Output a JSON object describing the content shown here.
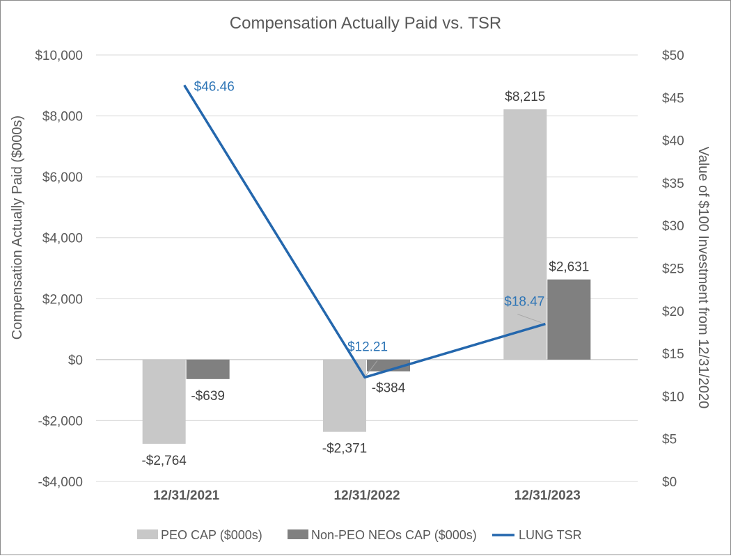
{
  "chart_data": {
    "type": "bar",
    "title": "Compensation Actually Paid vs. TSR",
    "ylabel": "Compensation Actually Paid ($000s)",
    "y2label": "Value of $100 Investment from 12/31/2020",
    "categories": [
      "12/31/2021",
      "12/31/2022",
      "12/31/2023"
    ],
    "ylim": [
      -4000,
      10000
    ],
    "y2lim": [
      0,
      50
    ],
    "y_ticks": [
      -4000,
      -2000,
      0,
      2000,
      4000,
      6000,
      8000,
      10000
    ],
    "y_tick_labels": [
      "-$4,000",
      "-$2,000",
      "$0",
      "$2,000",
      "$4,000",
      "$6,000",
      "$8,000",
      "$10,000"
    ],
    "y2_ticks": [
      0,
      5,
      10,
      15,
      20,
      25,
      30,
      35,
      40,
      45,
      50
    ],
    "y2_tick_labels": [
      "$0",
      "$5",
      "$10",
      "$15",
      "$20",
      "$25",
      "$30",
      "$35",
      "$40",
      "$45",
      "$50"
    ],
    "grid": true,
    "legend_position": "bottom",
    "series": [
      {
        "name": "PEO CAP ($000s)",
        "kind": "bar",
        "axis": "left",
        "color": "#c8c8c8",
        "values": [
          -2764,
          -2371,
          8215
        ],
        "labels": [
          "-$2,764",
          "-$2,371",
          "$8,215"
        ]
      },
      {
        "name": "Non-PEO NEOs CAP ($000s)",
        "kind": "bar",
        "axis": "left",
        "color": "#808080",
        "values": [
          -639,
          -384,
          2631
        ],
        "labels": [
          "-$639",
          "-$384",
          "$2,631"
        ]
      },
      {
        "name": "LUNG TSR",
        "kind": "line",
        "axis": "right",
        "color": "#2467ad",
        "values": [
          46.46,
          12.21,
          18.47
        ],
        "labels": [
          "$46.46",
          "$12.21",
          "$18.47"
        ]
      }
    ]
  }
}
